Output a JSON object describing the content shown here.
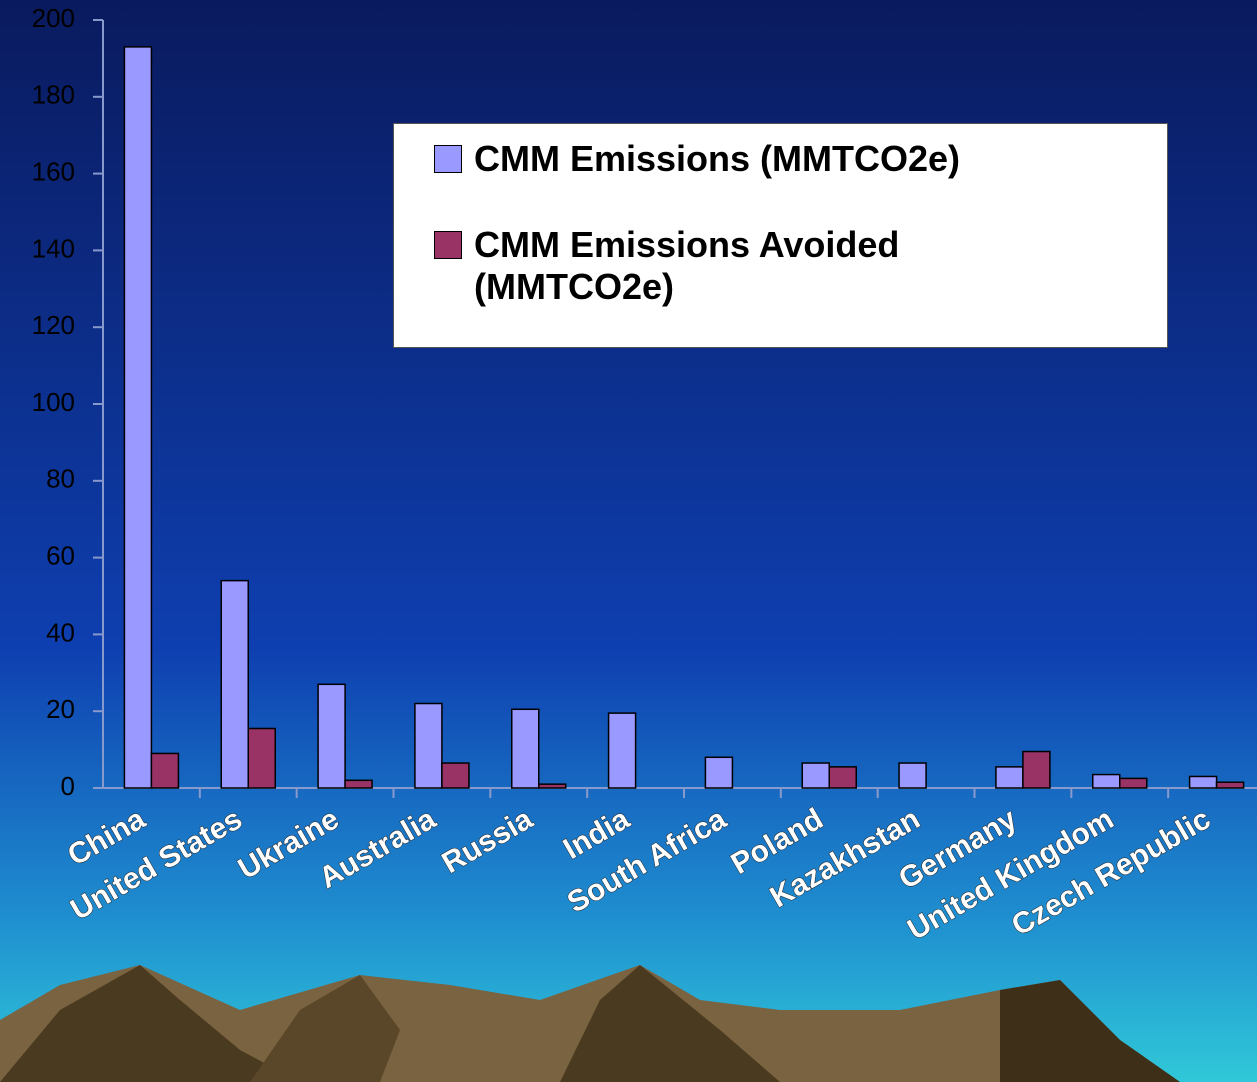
{
  "chart_data": {
    "type": "bar",
    "categories": [
      "China",
      "United States",
      "Ukraine",
      "Australia",
      "Russia",
      "India",
      "South Africa",
      "Poland",
      "Kazakhstan",
      "Germany",
      "United Kingdom",
      "Czech Republic"
    ],
    "series": [
      {
        "name": "CMM Emissions (MMTCO2e)",
        "color": "#9999ff",
        "values": [
          193,
          54,
          27,
          22,
          20.5,
          19.5,
          8,
          6.5,
          6.5,
          5.5,
          3.5,
          3
        ]
      },
      {
        "name": "CMM Emissions Avoided (MMTCO2e)",
        "color": "#993366",
        "values": [
          9,
          15.5,
          2,
          6.5,
          1,
          0,
          0,
          5.5,
          0,
          9.5,
          2.5,
          1.5
        ]
      }
    ],
    "ylim": [
      0,
      200
    ],
    "yticks": [
      0,
      20,
      40,
      60,
      80,
      100,
      120,
      140,
      160,
      180,
      200
    ]
  }
}
